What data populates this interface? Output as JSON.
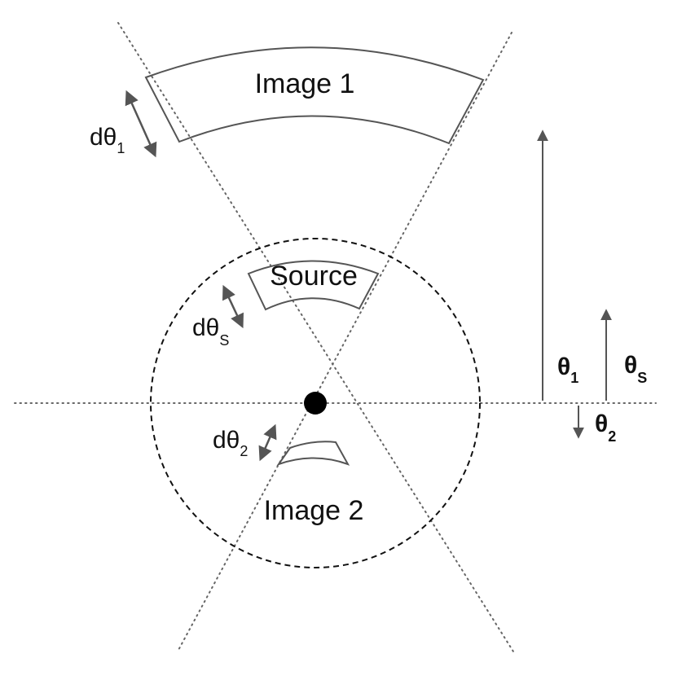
{
  "labels": {
    "image1": "Image 1",
    "image2": "Image 2",
    "source": "Source",
    "d_theta_1": {
      "main": "dθ",
      "sub": "1"
    },
    "d_theta_s": {
      "main": "dθ",
      "sub": "S"
    },
    "d_theta_2": {
      "main": "dθ",
      "sub": "2"
    },
    "theta_1": {
      "main": "θ",
      "sub": "1"
    },
    "theta_s": {
      "main": "θ",
      "sub": "S"
    },
    "theta_2": {
      "main": "θ",
      "sub": "2"
    }
  },
  "colors": {
    "line": "#555555",
    "dotted": "#666666",
    "lens": "#000000",
    "text": "#111111"
  }
}
